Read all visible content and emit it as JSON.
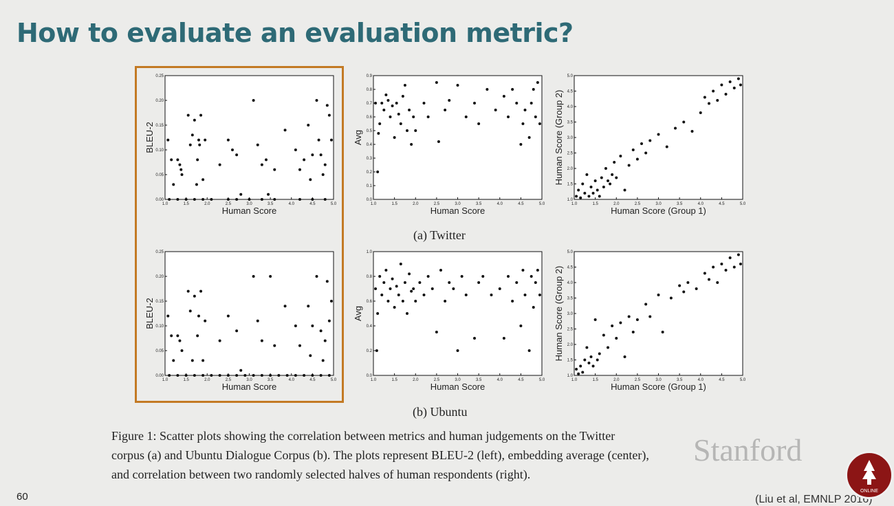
{
  "slide": {
    "title": "How to evaluate an evaluation metric?",
    "page_number": "60",
    "citation": "(Liu et al, EMNLP 2016)",
    "watermark": "Stanford",
    "logo_text": "ONLINE",
    "highlight_color": "#c37a24",
    "title_color": "#2e6a76"
  },
  "figure": {
    "subcaption_a": "(a) Twitter",
    "subcaption_b": "(b) Ubuntu",
    "caption_lines": [
      "Figure 1:   Scatter plots showing the correlation between metrics and human judgements on the Twitter",
      "corpus (a) and Ubuntu Dialogue Corpus (b). The plots represent BLEU-2 (left), embedding average (center),",
      "and correlation between two randomly selected halves of human respondents (right)."
    ]
  },
  "chart_data": [
    {
      "type": "scatter",
      "panel": "twitter-bleu2",
      "xlabel": "Human Score",
      "ylabel": "BLEU-2",
      "xlim": [
        1.0,
        5.0
      ],
      "ylim": [
        0.0,
        0.25
      ],
      "xticks": [
        "1.0",
        "1.5",
        "2.0",
        "2.5",
        "3.0",
        "3.5",
        "4.0",
        "4.5",
        "5.0"
      ],
      "yticks": [
        "0.00",
        "0.05",
        "0.10",
        "0.15",
        "0.20",
        "0.25"
      ],
      "points": [
        [
          1.07,
          0.12
        ],
        [
          1.15,
          0.08
        ],
        [
          1.2,
          0.03
        ],
        [
          1.3,
          0.08
        ],
        [
          1.35,
          0.07
        ],
        [
          1.38,
          0.06
        ],
        [
          1.4,
          0.05
        ],
        [
          1.55,
          0.17
        ],
        [
          1.6,
          0.11
        ],
        [
          1.65,
          0.13
        ],
        [
          1.7,
          0.16
        ],
        [
          1.75,
          0.03
        ],
        [
          1.77,
          0.08
        ],
        [
          1.8,
          0.12
        ],
        [
          1.82,
          0.11
        ],
        [
          1.85,
          0.17
        ],
        [
          1.9,
          0.04
        ],
        [
          1.95,
          0.12
        ],
        [
          2.3,
          0.07
        ],
        [
          2.5,
          0.12
        ],
        [
          2.6,
          0.1
        ],
        [
          2.7,
          0.09
        ],
        [
          2.8,
          0.01
        ],
        [
          3.1,
          0.2
        ],
        [
          3.2,
          0.11
        ],
        [
          3.3,
          0.07
        ],
        [
          3.4,
          0.08
        ],
        [
          3.45,
          0.01
        ],
        [
          3.6,
          0.06
        ],
        [
          3.85,
          0.14
        ],
        [
          4.1,
          0.1
        ],
        [
          4.2,
          0.06
        ],
        [
          4.3,
          0.08
        ],
        [
          4.4,
          0.15
        ],
        [
          4.45,
          0.04
        ],
        [
          4.5,
          0.09
        ],
        [
          4.6,
          0.2
        ],
        [
          4.65,
          0.12
        ],
        [
          4.7,
          0.09
        ],
        [
          4.75,
          0.05
        ],
        [
          4.8,
          0.07
        ],
        [
          4.85,
          0.19
        ],
        [
          4.9,
          0.17
        ],
        [
          4.95,
          0.12
        ],
        [
          1.1,
          0.0
        ],
        [
          1.3,
          0.0
        ],
        [
          1.5,
          0.0
        ],
        [
          1.7,
          0.0
        ],
        [
          1.9,
          0.0
        ],
        [
          2.1,
          0.0
        ],
        [
          2.5,
          0.0
        ],
        [
          2.7,
          0.0
        ],
        [
          3.0,
          0.0
        ],
        [
          3.3,
          0.0
        ],
        [
          3.6,
          0.0
        ],
        [
          4.2,
          0.0
        ],
        [
          4.5,
          0.0
        ],
        [
          4.8,
          0.0
        ]
      ]
    },
    {
      "type": "scatter",
      "panel": "twitter-avg",
      "xlabel": "Human Score",
      "ylabel": "Avg",
      "xlim": [
        1.0,
        5.0
      ],
      "ylim": [
        0.0,
        0.9
      ],
      "xticks": [
        "1.0",
        "1.5",
        "2.0",
        "2.5",
        "3.0",
        "3.5",
        "4.0",
        "4.5",
        "5.0"
      ],
      "yticks": [
        "0.0",
        "0.1",
        "0.2",
        "0.3",
        "0.4",
        "0.5",
        "0.6",
        "0.7",
        "0.8",
        "0.9"
      ],
      "points": [
        [
          1.05,
          0.7
        ],
        [
          1.1,
          0.2
        ],
        [
          1.12,
          0.48
        ],
        [
          1.15,
          0.55
        ],
        [
          1.2,
          0.7
        ],
        [
          1.25,
          0.65
        ],
        [
          1.3,
          0.76
        ],
        [
          1.35,
          0.72
        ],
        [
          1.4,
          0.6
        ],
        [
          1.45,
          0.68
        ],
        [
          1.5,
          0.45
        ],
        [
          1.55,
          0.7
        ],
        [
          1.6,
          0.62
        ],
        [
          1.65,
          0.55
        ],
        [
          1.7,
          0.75
        ],
        [
          1.75,
          0.83
        ],
        [
          1.8,
          0.5
        ],
        [
          1.85,
          0.65
        ],
        [
          1.9,
          0.4
        ],
        [
          1.95,
          0.6
        ],
        [
          2.0,
          0.5
        ],
        [
          2.2,
          0.7
        ],
        [
          2.3,
          0.6
        ],
        [
          2.5,
          0.85
        ],
        [
          2.55,
          0.42
        ],
        [
          2.7,
          0.65
        ],
        [
          2.8,
          0.72
        ],
        [
          3.0,
          0.83
        ],
        [
          3.2,
          0.6
        ],
        [
          3.4,
          0.7
        ],
        [
          3.5,
          0.55
        ],
        [
          3.7,
          0.8
        ],
        [
          3.9,
          0.65
        ],
        [
          4.1,
          0.75
        ],
        [
          4.2,
          0.6
        ],
        [
          4.3,
          0.8
        ],
        [
          4.4,
          0.7
        ],
        [
          4.5,
          0.4
        ],
        [
          4.55,
          0.55
        ],
        [
          4.6,
          0.65
        ],
        [
          4.7,
          0.45
        ],
        [
          4.75,
          0.7
        ],
        [
          4.8,
          0.8
        ],
        [
          4.85,
          0.6
        ],
        [
          4.9,
          0.85
        ],
        [
          4.95,
          0.55
        ]
      ]
    },
    {
      "type": "scatter",
      "panel": "twitter-group",
      "xlabel": "Human Score (Group 1)",
      "ylabel": "Human Score (Group 2)",
      "xlim": [
        1.0,
        5.0
      ],
      "ylim": [
        1.0,
        5.0
      ],
      "xticks": [
        "1.0",
        "1.5",
        "2.0",
        "2.5",
        "3.0",
        "3.5",
        "4.0",
        "4.5",
        "5.0"
      ],
      "yticks": [
        "1.0",
        "1.5",
        "2.0",
        "2.5",
        "3.0",
        "3.5",
        "4.0",
        "4.5",
        "5.0"
      ],
      "points": [
        [
          1.05,
          1.1
        ],
        [
          1.1,
          1.3
        ],
        [
          1.15,
          1.05
        ],
        [
          1.2,
          1.5
        ],
        [
          1.25,
          1.2
        ],
        [
          1.3,
          1.8
        ],
        [
          1.35,
          1.1
        ],
        [
          1.4,
          1.4
        ],
        [
          1.45,
          1.2
        ],
        [
          1.5,
          1.6
        ],
        [
          1.55,
          1.3
        ],
        [
          1.6,
          1.1
        ],
        [
          1.65,
          1.7
        ],
        [
          1.7,
          1.4
        ],
        [
          1.75,
          2.0
        ],
        [
          1.8,
          1.6
        ],
        [
          1.85,
          1.5
        ],
        [
          1.9,
          1.8
        ],
        [
          1.95,
          2.2
        ],
        [
          2.0,
          1.7
        ],
        [
          2.1,
          2.4
        ],
        [
          2.2,
          1.3
        ],
        [
          2.3,
          2.1
        ],
        [
          2.4,
          2.6
        ],
        [
          2.5,
          2.3
        ],
        [
          2.6,
          2.8
        ],
        [
          2.7,
          2.5
        ],
        [
          2.8,
          2.9
        ],
        [
          3.0,
          3.1
        ],
        [
          3.2,
          2.7
        ],
        [
          3.4,
          3.3
        ],
        [
          3.6,
          3.5
        ],
        [
          3.8,
          3.2
        ],
        [
          4.0,
          3.8
        ],
        [
          4.1,
          4.3
        ],
        [
          4.2,
          4.1
        ],
        [
          4.3,
          4.5
        ],
        [
          4.4,
          4.2
        ],
        [
          4.5,
          4.7
        ],
        [
          4.6,
          4.4
        ],
        [
          4.7,
          4.8
        ],
        [
          4.8,
          4.6
        ],
        [
          4.9,
          4.9
        ],
        [
          4.95,
          4.7
        ]
      ]
    },
    {
      "type": "scatter",
      "panel": "ubuntu-bleu2",
      "xlabel": "Human Score",
      "ylabel": "BLEU-2",
      "xlim": [
        1.0,
        5.0
      ],
      "ylim": [
        0.0,
        0.25
      ],
      "xticks": [
        "1.0",
        "1.5",
        "2.0",
        "2.5",
        "3.0",
        "3.5",
        "4.0",
        "4.5",
        "5.0"
      ],
      "yticks": [
        "0.00",
        "0.05",
        "0.10",
        "0.15",
        "0.20",
        "0.25"
      ],
      "points": [
        [
          1.07,
          0.12
        ],
        [
          1.15,
          0.08
        ],
        [
          1.2,
          0.03
        ],
        [
          1.3,
          0.08
        ],
        [
          1.35,
          0.07
        ],
        [
          1.4,
          0.05
        ],
        [
          1.55,
          0.17
        ],
        [
          1.6,
          0.13
        ],
        [
          1.65,
          0.03
        ],
        [
          1.7,
          0.16
        ],
        [
          1.77,
          0.08
        ],
        [
          1.8,
          0.12
        ],
        [
          1.85,
          0.17
        ],
        [
          1.9,
          0.03
        ],
        [
          1.95,
          0.11
        ],
        [
          2.3,
          0.07
        ],
        [
          2.5,
          0.12
        ],
        [
          2.7,
          0.09
        ],
        [
          2.8,
          0.01
        ],
        [
          3.1,
          0.2
        ],
        [
          3.2,
          0.11
        ],
        [
          3.3,
          0.07
        ],
        [
          3.5,
          0.2
        ],
        [
          3.6,
          0.06
        ],
        [
          3.85,
          0.14
        ],
        [
          4.1,
          0.1
        ],
        [
          4.2,
          0.06
        ],
        [
          4.4,
          0.14
        ],
        [
          4.45,
          0.04
        ],
        [
          4.5,
          0.1
        ],
        [
          4.6,
          0.2
        ],
        [
          4.7,
          0.09
        ],
        [
          4.75,
          0.03
        ],
        [
          4.8,
          0.07
        ],
        [
          4.85,
          0.19
        ],
        [
          4.9,
          0.11
        ],
        [
          4.95,
          0.15
        ],
        [
          1.1,
          0.0
        ],
        [
          1.3,
          0.0
        ],
        [
          1.5,
          0.0
        ],
        [
          1.7,
          0.0
        ],
        [
          1.9,
          0.0
        ],
        [
          2.1,
          0.0
        ],
        [
          2.3,
          0.0
        ],
        [
          2.5,
          0.0
        ],
        [
          2.7,
          0.0
        ],
        [
          2.9,
          0.0
        ],
        [
          3.1,
          0.0
        ],
        [
          3.3,
          0.0
        ],
        [
          3.5,
          0.0
        ],
        [
          3.7,
          0.0
        ],
        [
          3.9,
          0.0
        ],
        [
          4.1,
          0.0
        ],
        [
          4.3,
          0.0
        ],
        [
          4.5,
          0.0
        ],
        [
          4.7,
          0.0
        ],
        [
          4.9,
          0.0
        ]
      ]
    },
    {
      "type": "scatter",
      "panel": "ubuntu-avg",
      "xlabel": "Human Score",
      "ylabel": "Avg",
      "xlim": [
        1.0,
        5.0
      ],
      "ylim": [
        0.0,
        1.0
      ],
      "xticks": [
        "1.0",
        "1.5",
        "2.0",
        "2.5",
        "3.0",
        "3.5",
        "4.0",
        "4.5",
        "5.0"
      ],
      "yticks": [
        "0.0",
        "0.2",
        "0.4",
        "0.6",
        "0.8",
        "1.0"
      ],
      "points": [
        [
          1.05,
          0.7
        ],
        [
          1.08,
          0.2
        ],
        [
          1.1,
          0.5
        ],
        [
          1.15,
          0.8
        ],
        [
          1.2,
          0.65
        ],
        [
          1.25,
          0.75
        ],
        [
          1.3,
          0.85
        ],
        [
          1.35,
          0.6
        ],
        [
          1.4,
          0.7
        ],
        [
          1.45,
          0.78
        ],
        [
          1.5,
          0.55
        ],
        [
          1.55,
          0.72
        ],
        [
          1.6,
          0.65
        ],
        [
          1.65,
          0.9
        ],
        [
          1.7,
          0.6
        ],
        [
          1.75,
          0.75
        ],
        [
          1.8,
          0.5
        ],
        [
          1.85,
          0.82
        ],
        [
          1.9,
          0.68
        ],
        [
          1.95,
          0.7
        ],
        [
          2.0,
          0.6
        ],
        [
          2.1,
          0.75
        ],
        [
          2.2,
          0.65
        ],
        [
          2.3,
          0.8
        ],
        [
          2.4,
          0.7
        ],
        [
          2.5,
          0.35
        ],
        [
          2.6,
          0.85
        ],
        [
          2.7,
          0.6
        ],
        [
          2.8,
          0.75
        ],
        [
          2.9,
          0.7
        ],
        [
          3.0,
          0.2
        ],
        [
          3.1,
          0.8
        ],
        [
          3.2,
          0.65
        ],
        [
          3.4,
          0.3
        ],
        [
          3.5,
          0.75
        ],
        [
          3.6,
          0.8
        ],
        [
          3.8,
          0.65
        ],
        [
          4.0,
          0.7
        ],
        [
          4.1,
          0.3
        ],
        [
          4.2,
          0.8
        ],
        [
          4.3,
          0.6
        ],
        [
          4.4,
          0.75
        ],
        [
          4.5,
          0.4
        ],
        [
          4.55,
          0.85
        ],
        [
          4.6,
          0.65
        ],
        [
          4.7,
          0.2
        ],
        [
          4.75,
          0.8
        ],
        [
          4.8,
          0.55
        ],
        [
          4.85,
          0.75
        ],
        [
          4.9,
          0.85
        ],
        [
          4.95,
          0.65
        ]
      ]
    },
    {
      "type": "scatter",
      "panel": "ubuntu-group",
      "xlabel": "Human Score (Group 1)",
      "ylabel": "Human Score (Group 2)",
      "xlim": [
        1.0,
        5.0
      ],
      "ylim": [
        1.0,
        5.0
      ],
      "xticks": [
        "1.0",
        "1.5",
        "2.0",
        "2.5",
        "3.0",
        "3.5",
        "4.0",
        "4.5",
        "5.0"
      ],
      "yticks": [
        "1.0",
        "1.5",
        "2.0",
        "2.5",
        "3.0",
        "3.5",
        "4.0",
        "4.5",
        "5.0"
      ],
      "points": [
        [
          1.05,
          1.2
        ],
        [
          1.1,
          1.05
        ],
        [
          1.15,
          1.3
        ],
        [
          1.2,
          1.1
        ],
        [
          1.25,
          1.5
        ],
        [
          1.3,
          1.9
        ],
        [
          1.35,
          1.4
        ],
        [
          1.4,
          1.6
        ],
        [
          1.45,
          1.3
        ],
        [
          1.5,
          2.8
        ],
        [
          1.55,
          1.5
        ],
        [
          1.6,
          1.7
        ],
        [
          1.7,
          2.3
        ],
        [
          1.8,
          1.9
        ],
        [
          1.9,
          2.6
        ],
        [
          2.0,
          2.2
        ],
        [
          2.1,
          2.7
        ],
        [
          2.2,
          1.6
        ],
        [
          2.3,
          2.9
        ],
        [
          2.4,
          2.4
        ],
        [
          2.5,
          2.8
        ],
        [
          2.7,
          3.3
        ],
        [
          2.8,
          2.9
        ],
        [
          3.0,
          3.6
        ],
        [
          3.1,
          2.4
        ],
        [
          3.3,
          3.5
        ],
        [
          3.5,
          3.9
        ],
        [
          3.6,
          3.7
        ],
        [
          3.7,
          4.0
        ],
        [
          3.9,
          3.8
        ],
        [
          4.1,
          4.3
        ],
        [
          4.2,
          4.1
        ],
        [
          4.3,
          4.5
        ],
        [
          4.4,
          4.0
        ],
        [
          4.5,
          4.6
        ],
        [
          4.6,
          4.4
        ],
        [
          4.7,
          4.8
        ],
        [
          4.8,
          4.5
        ],
        [
          4.9,
          4.9
        ],
        [
          4.95,
          4.6
        ]
      ]
    }
  ]
}
